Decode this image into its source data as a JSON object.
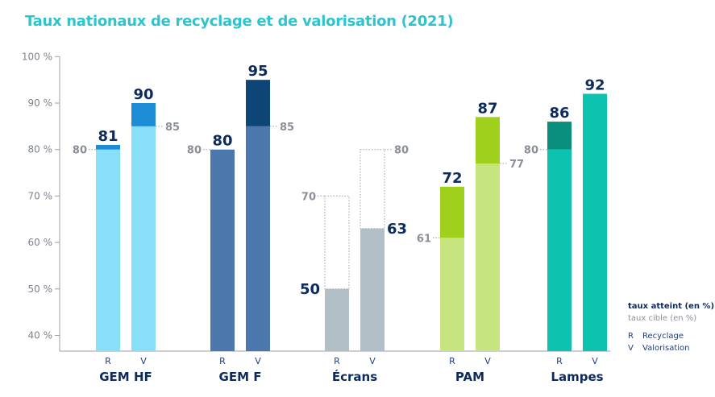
{
  "title": "Taux nationaux de recyclage et de valorisation (2021)",
  "legend": {
    "attained": "taux atteint (en %)",
    "target": "taux cible (en %)",
    "codes": [
      {
        "code": "R",
        "label": "Recyclage"
      },
      {
        "code": "V",
        "label": "Valorisation"
      }
    ]
  },
  "chart_data": {
    "type": "bar",
    "title": "Taux nationaux de recyclage et de valorisation (2021)",
    "ylim": [
      37,
      100
    ],
    "yticks": [
      40,
      50,
      60,
      70,
      80,
      90,
      100
    ],
    "ytick_labels": [
      "40 %",
      "50 %",
      "60 %",
      "70 %",
      "80 %",
      "90 %",
      "100 %"
    ],
    "grid": false,
    "legend_position": "bottom-right",
    "categories": [
      "GEM HF",
      "GEM F",
      "Écrans",
      "PAM",
      "Lampes"
    ],
    "subcategories": [
      "R",
      "V"
    ],
    "series": [
      {
        "name": "taux atteint (en %)",
        "values": [
          [
            81,
            90
          ],
          [
            80,
            95
          ],
          [
            50,
            63
          ],
          [
            72,
            87
          ],
          [
            86,
            92
          ]
        ]
      },
      {
        "name": "taux cible (en %)",
        "values": [
          [
            80,
            85
          ],
          [
            80,
            85
          ],
          [
            70,
            80
          ],
          [
            61,
            77
          ],
          [
            80,
            null
          ]
        ]
      }
    ],
    "colors": {
      "GEM HF": {
        "base": "#87dff8",
        "excess": "#1c8cd6",
        "label": "#0d2b5c"
      },
      "GEM F": {
        "base": "#4b77ad",
        "excess": "#0d4577",
        "label": "#0d2b5c"
      },
      "Écrans": {
        "base": "#b3bfc7",
        "excess": "#b3bfc7",
        "label": "#0d2b5c"
      },
      "PAM": {
        "base": "#c6e57e",
        "excess": "#9fd11c",
        "label": "#0d2b5c"
      },
      "Lampes": {
        "base": "#0ec2b0",
        "excess": "#0a8f7e",
        "label": "#0d2b5c"
      },
      "target_text": "#8a8f99",
      "axis": "#9aa0a8"
    }
  }
}
